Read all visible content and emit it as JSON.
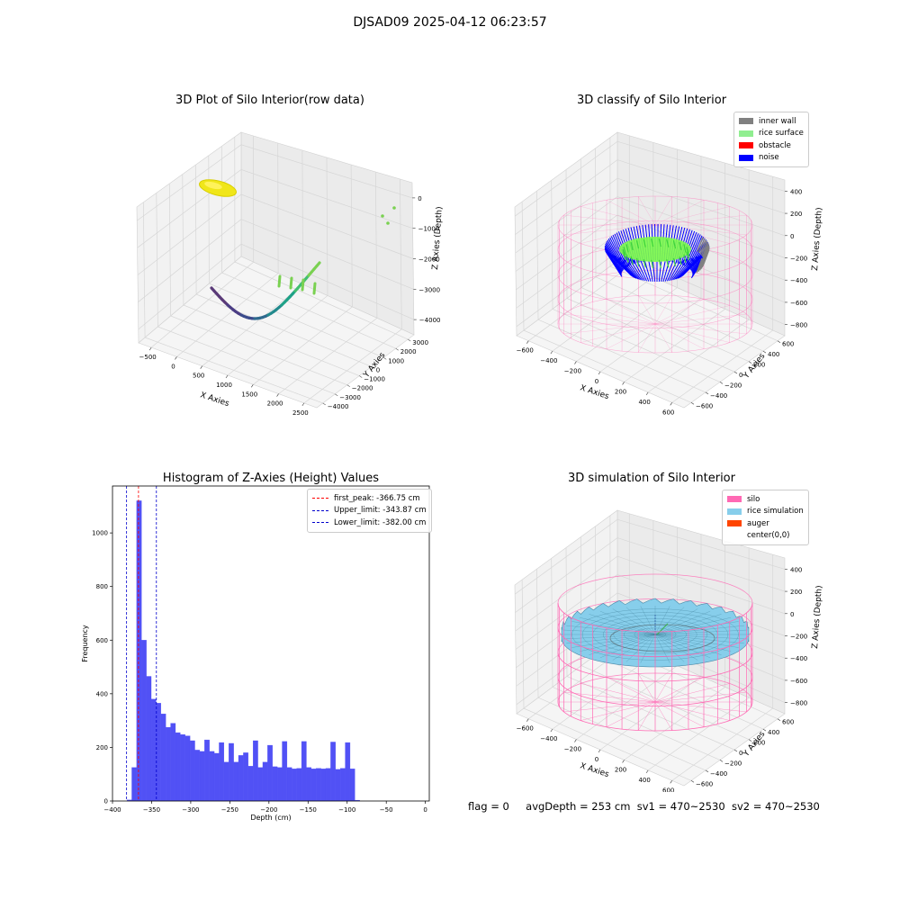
{
  "suptitle": "DJSAD09 2025-04-12 06:23:57",
  "colors": {
    "inner_wall": "#808080",
    "rice_surface": "#90ee90",
    "obstacle": "#ff0000",
    "noise": "#0000ff",
    "silo": "#ff69b4",
    "rice_simulation": "#87ceeb",
    "auger": "#ff4500",
    "hist_bar": "#5151f5",
    "first_peak": "#ff0000",
    "limits": "#0000cd"
  },
  "status": {
    "flag": "flag = 0",
    "avg_depth": "avgDepth = 253 cm",
    "sv1": "sv1 = 470~2530",
    "sv2": "sv2 = 470~2530"
  },
  "chart_data": [
    {
      "type": "scatter",
      "projection": "3d",
      "title": "3D Plot of Silo Interior(row data)",
      "xlabel": "X Axies",
      "ylabel": "Y Axies",
      "zlabel": "Z Axies (Depth)",
      "xticks": [
        "−500",
        "0",
        "500",
        "1000",
        "1500",
        "2000",
        "2500"
      ],
      "yticks": [
        "−4000",
        "−3000",
        "−2000",
        "−1000",
        "0",
        "1000",
        "2000",
        "3000"
      ],
      "zticks": [
        "−4000",
        "−3000",
        "−2000",
        "−1000",
        "0"
      ],
      "xlim": [
        -500,
        2700
      ],
      "ylim": [
        -4000,
        3500
      ],
      "zlim": [
        -4400,
        200
      ]
    },
    {
      "type": "scatter",
      "projection": "3d",
      "title": "3D classify of Silo Interior",
      "xlabel": "X Axies",
      "ylabel": "Y Axies",
      "zlabel": "Z Axies (Depth)",
      "xticks": [
        "−600",
        "−400",
        "−200",
        "0",
        "200",
        "400",
        "600"
      ],
      "yticks": [
        "−600",
        "−400",
        "−200",
        "0",
        "200",
        "400",
        "600"
      ],
      "zticks": [
        "−800",
        "−600",
        "−400",
        "−200",
        "0",
        "200",
        "400"
      ],
      "legend": [
        "inner wall",
        "rice surface",
        "obstacle",
        "noise"
      ],
      "legend_loc": "upper right"
    },
    {
      "type": "bar",
      "title": "Histogram of Z-Axies (Height) Values",
      "xlabel": "Depth (cm)",
      "ylabel": "Frequency",
      "xlim": [
        -400,
        5
      ],
      "ylim": [
        0,
        1175
      ],
      "xticks": [
        "−400",
        "−350",
        "−300",
        "−250",
        "−200",
        "−150",
        "−100",
        "−50",
        "0"
      ],
      "yticks": [
        "0",
        "200",
        "400",
        "600",
        "800",
        "1000"
      ],
      "bin_width": 6.2,
      "bins": [
        [
          -381.5,
          4
        ],
        [
          -375.3,
          125
        ],
        [
          -369.1,
          1120
        ],
        [
          -362.9,
          600
        ],
        [
          -356.7,
          465
        ],
        [
          -350.5,
          380
        ],
        [
          -344.3,
          365
        ],
        [
          -338.1,
          325
        ],
        [
          -331.9,
          275
        ],
        [
          -325.7,
          290
        ],
        [
          -319.5,
          255
        ],
        [
          -313.3,
          248
        ],
        [
          -307.1,
          243
        ],
        [
          -300.9,
          225
        ],
        [
          -294.7,
          190
        ],
        [
          -288.5,
          185
        ],
        [
          -282.3,
          228
        ],
        [
          -276.1,
          185
        ],
        [
          -269.9,
          178
        ],
        [
          -263.7,
          218
        ],
        [
          -257.5,
          145
        ],
        [
          -251.3,
          215
        ],
        [
          -245.1,
          145
        ],
        [
          -238.9,
          170
        ],
        [
          -232.7,
          180
        ],
        [
          -226.5,
          130
        ],
        [
          -220.3,
          225
        ],
        [
          -214.1,
          125
        ],
        [
          -207.9,
          145
        ],
        [
          -201.7,
          208
        ],
        [
          -195.5,
          128
        ],
        [
          -189.3,
          125
        ],
        [
          -183.1,
          222
        ],
        [
          -176.9,
          125
        ],
        [
          -170.7,
          120
        ],
        [
          -164.5,
          122
        ],
        [
          -158.3,
          222
        ],
        [
          -152.1,
          125
        ],
        [
          -145.9,
          120
        ],
        [
          -139.7,
          122
        ],
        [
          -133.5,
          120
        ],
        [
          -127.3,
          122
        ],
        [
          -121.1,
          220
        ],
        [
          -114.9,
          118
        ],
        [
          -108.7,
          122
        ],
        [
          -102.5,
          218
        ],
        [
          -96.3,
          120
        ],
        [
          -90.1,
          3
        ]
      ],
      "vlines": [
        {
          "label": "first_peak: -366.75 cm",
          "x": -366.75,
          "color": "#ff0000"
        },
        {
          "label": "Upper_limit: -343.87 cm",
          "x": -343.87,
          "color": "#0000cd"
        },
        {
          "label": "Lower_limit: -382.00 cm",
          "x": -382.0,
          "color": "#0000cd"
        }
      ],
      "legend_loc": "upper right"
    },
    {
      "type": "surface",
      "projection": "3d",
      "title": "3D simulation of Silo Interior",
      "xlabel": "X Axies",
      "ylabel": "Y Axies",
      "zlabel": "Z Axies (Depth)",
      "xticks": [
        "−600",
        "−400",
        "−200",
        "0",
        "200",
        "400",
        "600"
      ],
      "yticks": [
        "−600",
        "−400",
        "−200",
        "0",
        "200",
        "400",
        "600"
      ],
      "zticks": [
        "−800",
        "−600",
        "−400",
        "−200",
        "0",
        "200",
        "400"
      ],
      "legend": [
        "silo",
        "rice simulation",
        "auger",
        "center(0,0)"
      ],
      "legend_loc": "upper right"
    }
  ]
}
